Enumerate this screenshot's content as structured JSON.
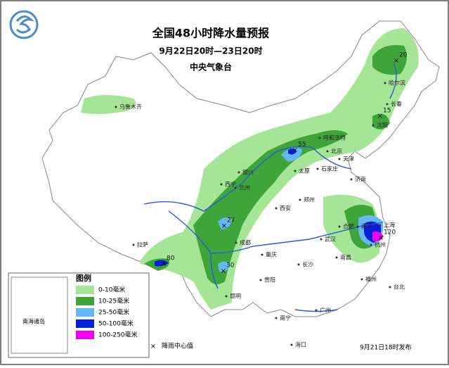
{
  "header": {
    "title": "全国48小时降水量预报",
    "period": "9月22日20时—23日20时",
    "agency": "中央气象台"
  },
  "legend": {
    "title": "图例",
    "items": [
      {
        "label": "0-10毫米",
        "color": "#a5e596"
      },
      {
        "label": "10-25毫米",
        "color": "#3da53a"
      },
      {
        "label": "25-50毫米",
        "color": "#66b8f2"
      },
      {
        "label": "50-100毫米",
        "color": "#0a1fd8"
      },
      {
        "label": "100-250毫米",
        "color": "#f000f0"
      }
    ],
    "center_label": "降雨中心值"
  },
  "inset": {
    "label": "南海诸岛"
  },
  "cities": [
    "乌鲁木齐",
    "哈尔滨",
    "长春",
    "沈阳",
    "呼和浩特",
    "北京",
    "天津",
    "石家庄",
    "太原",
    "银川",
    "兰州",
    "西宁",
    "西安",
    "郑州",
    "济南",
    "南京",
    "上海",
    "合肥",
    "杭州",
    "武汉",
    "南昌",
    "长沙",
    "福州",
    "台北",
    "广州",
    "南宁",
    "海口",
    "贵阳",
    "昆明",
    "成都",
    "重庆",
    "拉萨"
  ],
  "rain_centers": [
    20,
    15,
    55,
    27,
    80,
    30,
    120
  ],
  "footer": "9月21日18时发布"
}
